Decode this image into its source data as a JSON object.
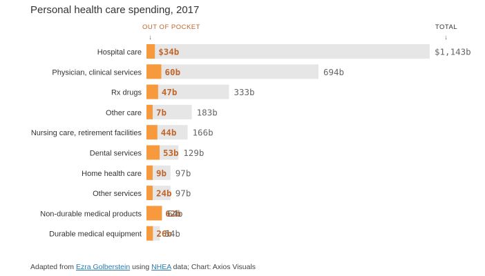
{
  "chart_data": {
    "type": "bar",
    "title": "Personal health care spending, 2017",
    "header_out_of_pocket": "OUT OF POCKET",
    "header_total": "TOTAL",
    "categories": [
      "Hospital care",
      "Physician, clinical services",
      "Rx drugs",
      "Other care",
      "Nursing care, retirement facilities",
      "Dental services",
      "Home health care",
      "Other services",
      "Non-durable medical products",
      "Durable medical equipment"
    ],
    "series": [
      {
        "name": "OUT OF POCKET",
        "values": [
          34,
          60,
          47,
          7,
          44,
          53,
          9,
          24,
          62,
          26
        ],
        "labels": [
          "$34b",
          "60b",
          "47b",
          "7b",
          "44b",
          "53b",
          "9b",
          "24b",
          "62b",
          "26b"
        ]
      },
      {
        "name": "TOTAL",
        "values": [
          1143,
          694,
          333,
          183,
          166,
          129,
          97,
          97,
          64,
          54
        ],
        "labels": [
          "$1,143b",
          "694b",
          "333b",
          "183b",
          "166b",
          "129b",
          "97b",
          "97b",
          "64b",
          "54b"
        ]
      }
    ],
    "colors": {
      "out_of_pocket": "#f79a3e",
      "total": "#e6e6e6",
      "oop_text": "#c0652a"
    }
  },
  "footer": {
    "prefix": "Adapted from ",
    "link1": "Ezra Golberstein",
    "mid": " using ",
    "link2": "NHEA",
    "suffix": " data; Chart: Axios Visuals"
  }
}
